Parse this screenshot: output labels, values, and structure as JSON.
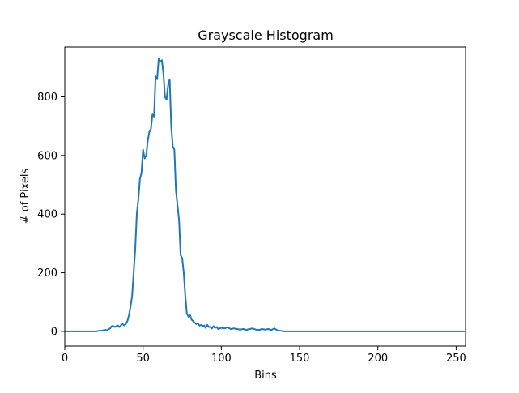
{
  "chart_data": {
    "type": "line",
    "title": "Grayscale Histogram",
    "xlabel": "Bins",
    "ylabel": "# of Pixels",
    "xlim": [
      0,
      256
    ],
    "ylim": [
      -50,
      970
    ],
    "xticks": [
      0,
      50,
      100,
      150,
      200,
      250
    ],
    "yticks": [
      0,
      200,
      400,
      600,
      800
    ],
    "grid": false,
    "legend": "none",
    "line_color": "#1f77b4",
    "x": [
      0,
      5,
      10,
      15,
      20,
      22,
      24,
      26,
      27,
      28,
      29,
      30,
      31,
      32,
      33,
      34,
      35,
      36,
      37,
      38,
      39,
      40,
      41,
      42,
      43,
      44,
      45,
      46,
      47,
      48,
      49,
      50,
      51,
      52,
      53,
      54,
      55,
      56,
      57,
      58,
      59,
      60,
      61,
      62,
      63,
      64,
      65,
      66,
      67,
      68,
      69,
      70,
      71,
      72,
      73,
      74,
      75,
      76,
      77,
      78,
      79,
      80,
      81,
      82,
      83,
      84,
      85,
      86,
      87,
      88,
      89,
      90,
      91,
      92,
      93,
      94,
      95,
      96,
      97,
      98,
      99,
      100,
      102,
      104,
      106,
      108,
      110,
      112,
      114,
      116,
      118,
      120,
      122,
      124,
      126,
      128,
      130,
      132,
      134,
      136,
      138,
      140,
      145,
      150,
      160,
      180,
      200,
      220,
      240,
      255
    ],
    "y": [
      0,
      0,
      0,
      0,
      0,
      2,
      3,
      5,
      3,
      8,
      10,
      18,
      18,
      15,
      18,
      20,
      15,
      22,
      25,
      20,
      25,
      35,
      55,
      85,
      120,
      200,
      280,
      400,
      450,
      520,
      540,
      620,
      590,
      600,
      650,
      680,
      690,
      740,
      730,
      870,
      860,
      930,
      920,
      925,
      880,
      800,
      790,
      840,
      860,
      700,
      630,
      620,
      480,
      430,
      380,
      260,
      250,
      200,
      120,
      60,
      50,
      55,
      40,
      35,
      30,
      25,
      28,
      20,
      22,
      18,
      20,
      12,
      22,
      15,
      15,
      10,
      18,
      12,
      15,
      8,
      10,
      12,
      10,
      14,
      8,
      10,
      8,
      6,
      8,
      5,
      8,
      10,
      6,
      5,
      8,
      6,
      8,
      5,
      10,
      3,
      2,
      0,
      0,
      0,
      0,
      0,
      0,
      0,
      0,
      0
    ]
  }
}
